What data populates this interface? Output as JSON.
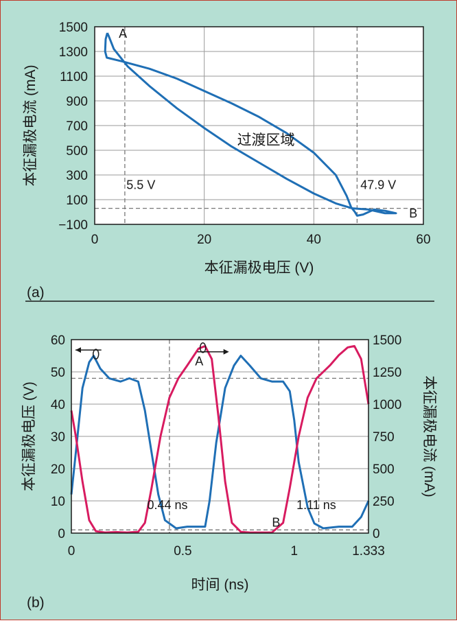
{
  "chart_data": [
    {
      "id": "a",
      "type": "line",
      "panel_label": "(a)",
      "xlabel": "本征漏极电压 (V)",
      "ylabel": "本征漏极电流 (mA)",
      "xlim": [
        0,
        60
      ],
      "ylim": [
        -100,
        1500
      ],
      "xticks": [
        0,
        20,
        40,
        60
      ],
      "yticks": [
        -100,
        100,
        300,
        500,
        700,
        900,
        1100,
        1300,
        1500
      ],
      "yticklabels": [
        "−100",
        "100",
        "300",
        "500",
        "700",
        "900",
        "1100",
        "1300",
        "1500"
      ],
      "grid": true,
      "series": [
        {
          "color": "#1f6fb5",
          "points": [
            [
              2.3,
              1450
            ],
            [
              2.0,
              1400
            ],
            [
              1.9,
              1300
            ],
            [
              2.2,
              1250
            ],
            [
              5,
              1220
            ],
            [
              10,
              1160
            ],
            [
              15,
              1080
            ],
            [
              20,
              980
            ],
            [
              25,
              880
            ],
            [
              30,
              770
            ],
            [
              35,
              640
            ],
            [
              40,
              480
            ],
            [
              44,
              300
            ],
            [
              46,
              130
            ],
            [
              46.8,
              40
            ],
            [
              47.5,
              0
            ],
            [
              47.9,
              -30
            ],
            [
              49,
              -20
            ],
            [
              51,
              20
            ],
            [
              53,
              10
            ],
            [
              55,
              -10
            ],
            [
              53,
              -10
            ],
            [
              50,
              20
            ],
            [
              47,
              30
            ],
            [
              44,
              70
            ],
            [
              40,
              150
            ],
            [
              35,
              270
            ],
            [
              30,
              400
            ],
            [
              25,
              530
            ],
            [
              20,
              680
            ],
            [
              15,
              840
            ],
            [
              10,
              1020
            ],
            [
              6,
              1180
            ],
            [
              3.5,
              1320
            ],
            [
              2.6,
              1420
            ],
            [
              2.3,
              1450
            ]
          ]
        }
      ],
      "reference_lines": {
        "vertical": [
          5.5,
          47.9
        ],
        "horizontal": [
          30
        ]
      },
      "annotations": [
        {
          "text": "A",
          "x": 4.4,
          "y": 1410
        },
        {
          "text": "B",
          "x": 57.4,
          "y": -45
        },
        {
          "text": "5.5 V",
          "x": 5.8,
          "y": 185
        },
        {
          "text": "47.9 V",
          "x": 48.5,
          "y": 185
        },
        {
          "text": "过渡区域",
          "x": 26,
          "y": 545
        }
      ]
    },
    {
      "id": "b",
      "type": "line",
      "panel_label": "(b)",
      "xlabel": "时间 (ns)",
      "ylabel_left": "本征漏极电压 (V)",
      "ylabel_right": "本征漏极电流 (mA)",
      "xlim": [
        0,
        1.333
      ],
      "ylim_left": [
        0,
        60
      ],
      "ylim_right": [
        0,
        1500
      ],
      "xticks": [
        0,
        0.5,
        1,
        1.333
      ],
      "xticklabels": [
        "0",
        "0.5",
        "1",
        "1.333"
      ],
      "yticks_left": [
        0,
        10,
        20,
        30,
        40,
        50,
        60
      ],
      "yticks_right": [
        0,
        250,
        500,
        750,
        1000,
        1250,
        1500
      ],
      "grid": true,
      "series": [
        {
          "axis": "left",
          "color": "#1f6fb5",
          "points": [
            [
              0,
              12
            ],
            [
              0.02,
              25
            ],
            [
              0.05,
              45
            ],
            [
              0.08,
              53
            ],
            [
              0.1,
              55
            ],
            [
              0.13,
              51
            ],
            [
              0.17,
              48
            ],
            [
              0.22,
              47
            ],
            [
              0.26,
              48
            ],
            [
              0.3,
              47
            ],
            [
              0.33,
              38
            ],
            [
              0.36,
              25
            ],
            [
              0.39,
              12
            ],
            [
              0.42,
              4
            ],
            [
              0.47,
              1.5
            ],
            [
              0.52,
              2
            ],
            [
              0.58,
              2
            ],
            [
              0.6,
              2
            ],
            [
              0.62,
              10
            ],
            [
              0.65,
              28
            ],
            [
              0.69,
              45
            ],
            [
              0.73,
              52
            ],
            [
              0.76,
              55
            ],
            [
              0.8,
              52
            ],
            [
              0.85,
              48
            ],
            [
              0.9,
              47
            ],
            [
              0.95,
              47
            ],
            [
              0.98,
              44
            ],
            [
              1.0,
              35
            ],
            [
              1.02,
              22
            ],
            [
              1.06,
              8
            ],
            [
              1.09,
              3
            ],
            [
              1.13,
              1.5
            ],
            [
              1.2,
              2
            ],
            [
              1.26,
              2
            ],
            [
              1.3,
              5
            ],
            [
              1.333,
              10
            ]
          ]
        },
        {
          "axis": "right",
          "color": "#d81b60",
          "points": [
            [
              0,
              950
            ],
            [
              0.02,
              750
            ],
            [
              0.05,
              400
            ],
            [
              0.08,
              100
            ],
            [
              0.11,
              15
            ],
            [
              0.15,
              5
            ],
            [
              0.2,
              8
            ],
            [
              0.25,
              5
            ],
            [
              0.3,
              10
            ],
            [
              0.33,
              80
            ],
            [
              0.36,
              350
            ],
            [
              0.4,
              750
            ],
            [
              0.44,
              1050
            ],
            [
              0.48,
              1200
            ],
            [
              0.52,
              1300
            ],
            [
              0.57,
              1430
            ],
            [
              0.6,
              1450
            ],
            [
              0.63,
              1350
            ],
            [
              0.66,
              900
            ],
            [
              0.69,
              400
            ],
            [
              0.72,
              80
            ],
            [
              0.76,
              10
            ],
            [
              0.8,
              5
            ],
            [
              0.85,
              5
            ],
            [
              0.9,
              5
            ],
            [
              0.95,
              80
            ],
            [
              0.98,
              350
            ],
            [
              1.02,
              750
            ],
            [
              1.06,
              1050
            ],
            [
              1.1,
              1200
            ],
            [
              1.16,
              1300
            ],
            [
              1.2,
              1380
            ],
            [
              1.24,
              1440
            ],
            [
              1.27,
              1450
            ],
            [
              1.3,
              1350
            ],
            [
              1.333,
              1000
            ]
          ]
        }
      ],
      "reference_lines": {
        "vertical": [
          0.44,
          1.11
        ],
        "horizontal_left": [
          48,
          1
        ]
      },
      "annotations": [
        {
          "text": "A",
          "x": 0.555,
          "y": 52
        },
        {
          "text": "B",
          "x": 0.9,
          "y": 2
        },
        {
          "text": "0.44 ns",
          "x": 0.34,
          "y": 7.5
        },
        {
          "text": "1.11 ns",
          "x": 1.01,
          "y": 7.5
        }
      ]
    }
  ]
}
